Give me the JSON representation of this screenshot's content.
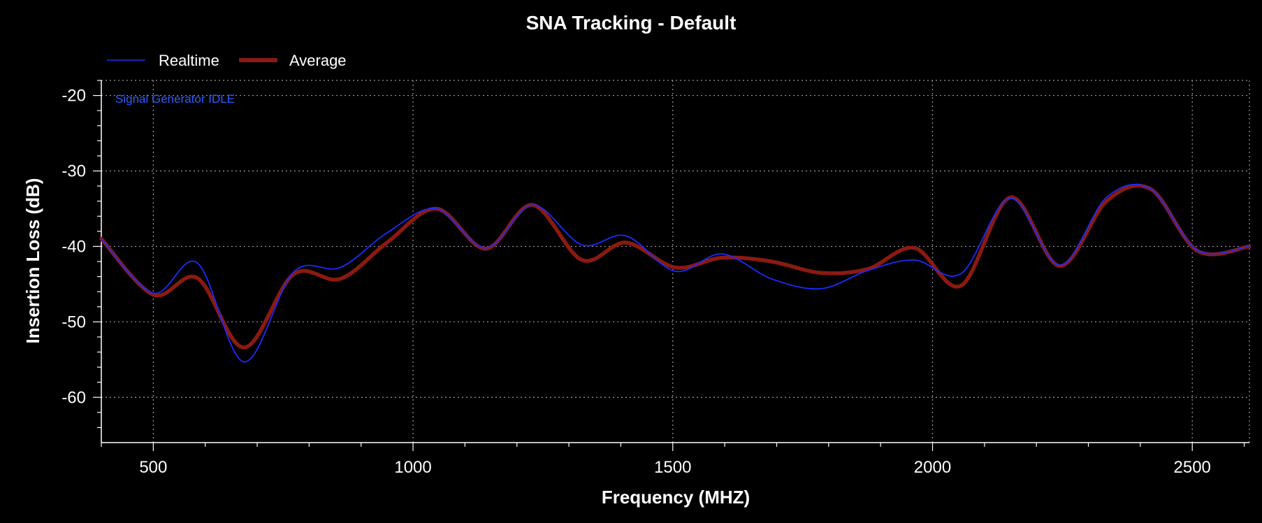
{
  "chart_data": {
    "type": "line",
    "title": "SNA Tracking - Default",
    "xlabel": "Frequency (MHZ)",
    "ylabel": "Insertion Loss (dB)",
    "xlim": [
      400,
      2610
    ],
    "ylim": [
      -66,
      -18
    ],
    "xticks": [
      500,
      1000,
      1500,
      2000,
      2500
    ],
    "yticks": [
      -20,
      -30,
      -40,
      -50,
      -60
    ],
    "xtick_labels": [
      "500",
      "1000",
      "1500",
      "2000",
      "2500"
    ],
    "ytick_labels": [
      "-20",
      "-30",
      "-40",
      "-50",
      "-60"
    ],
    "grid": true,
    "legend_position": "top-left",
    "annotation": "Signal Generator IDLE",
    "colors": {
      "background": "#000000",
      "grid": "#9a9a9a",
      "axis": "#ffffff",
      "realtime": "#1c2bff",
      "average": "#8b1a10",
      "annotation": "#2f5cff"
    },
    "series": [
      {
        "name": "Realtime",
        "x": [
          400,
          500,
          585,
          675,
          770,
          860,
          950,
          1045,
          1140,
          1230,
          1325,
          1410,
          1505,
          1595,
          1690,
          1785,
          1875,
          1965,
          2055,
          2150,
          2245,
          2335,
          2420,
          2510,
          2610
        ],
        "y": [
          -39,
          -46.2,
          -42.2,
          -55.3,
          -43.4,
          -42.8,
          -38.2,
          -35.0,
          -40.2,
          -34.5,
          -39.8,
          -38.6,
          -43.3,
          -41.0,
          -44.3,
          -45.6,
          -43.2,
          -41.8,
          -43.6,
          -33.6,
          -42.5,
          -33.5,
          -32.4,
          -40.5,
          -40.0
        ]
      },
      {
        "name": "Average",
        "x": [
          400,
          500,
          585,
          675,
          770,
          860,
          950,
          1045,
          1140,
          1230,
          1325,
          1410,
          1505,
          1595,
          1690,
          1785,
          1875,
          1965,
          2055,
          2150,
          2245,
          2335,
          2420,
          2510,
          2610
        ],
        "y": [
          -39,
          -46.4,
          -44.2,
          -53.4,
          -43.7,
          -44.3,
          -39.5,
          -35.0,
          -40.3,
          -34.5,
          -41.8,
          -39.5,
          -42.8,
          -41.5,
          -42.0,
          -43.5,
          -43.0,
          -40.2,
          -45.2,
          -33.5,
          -42.6,
          -34.0,
          -32.4,
          -40.6,
          -40.0
        ]
      }
    ]
  }
}
